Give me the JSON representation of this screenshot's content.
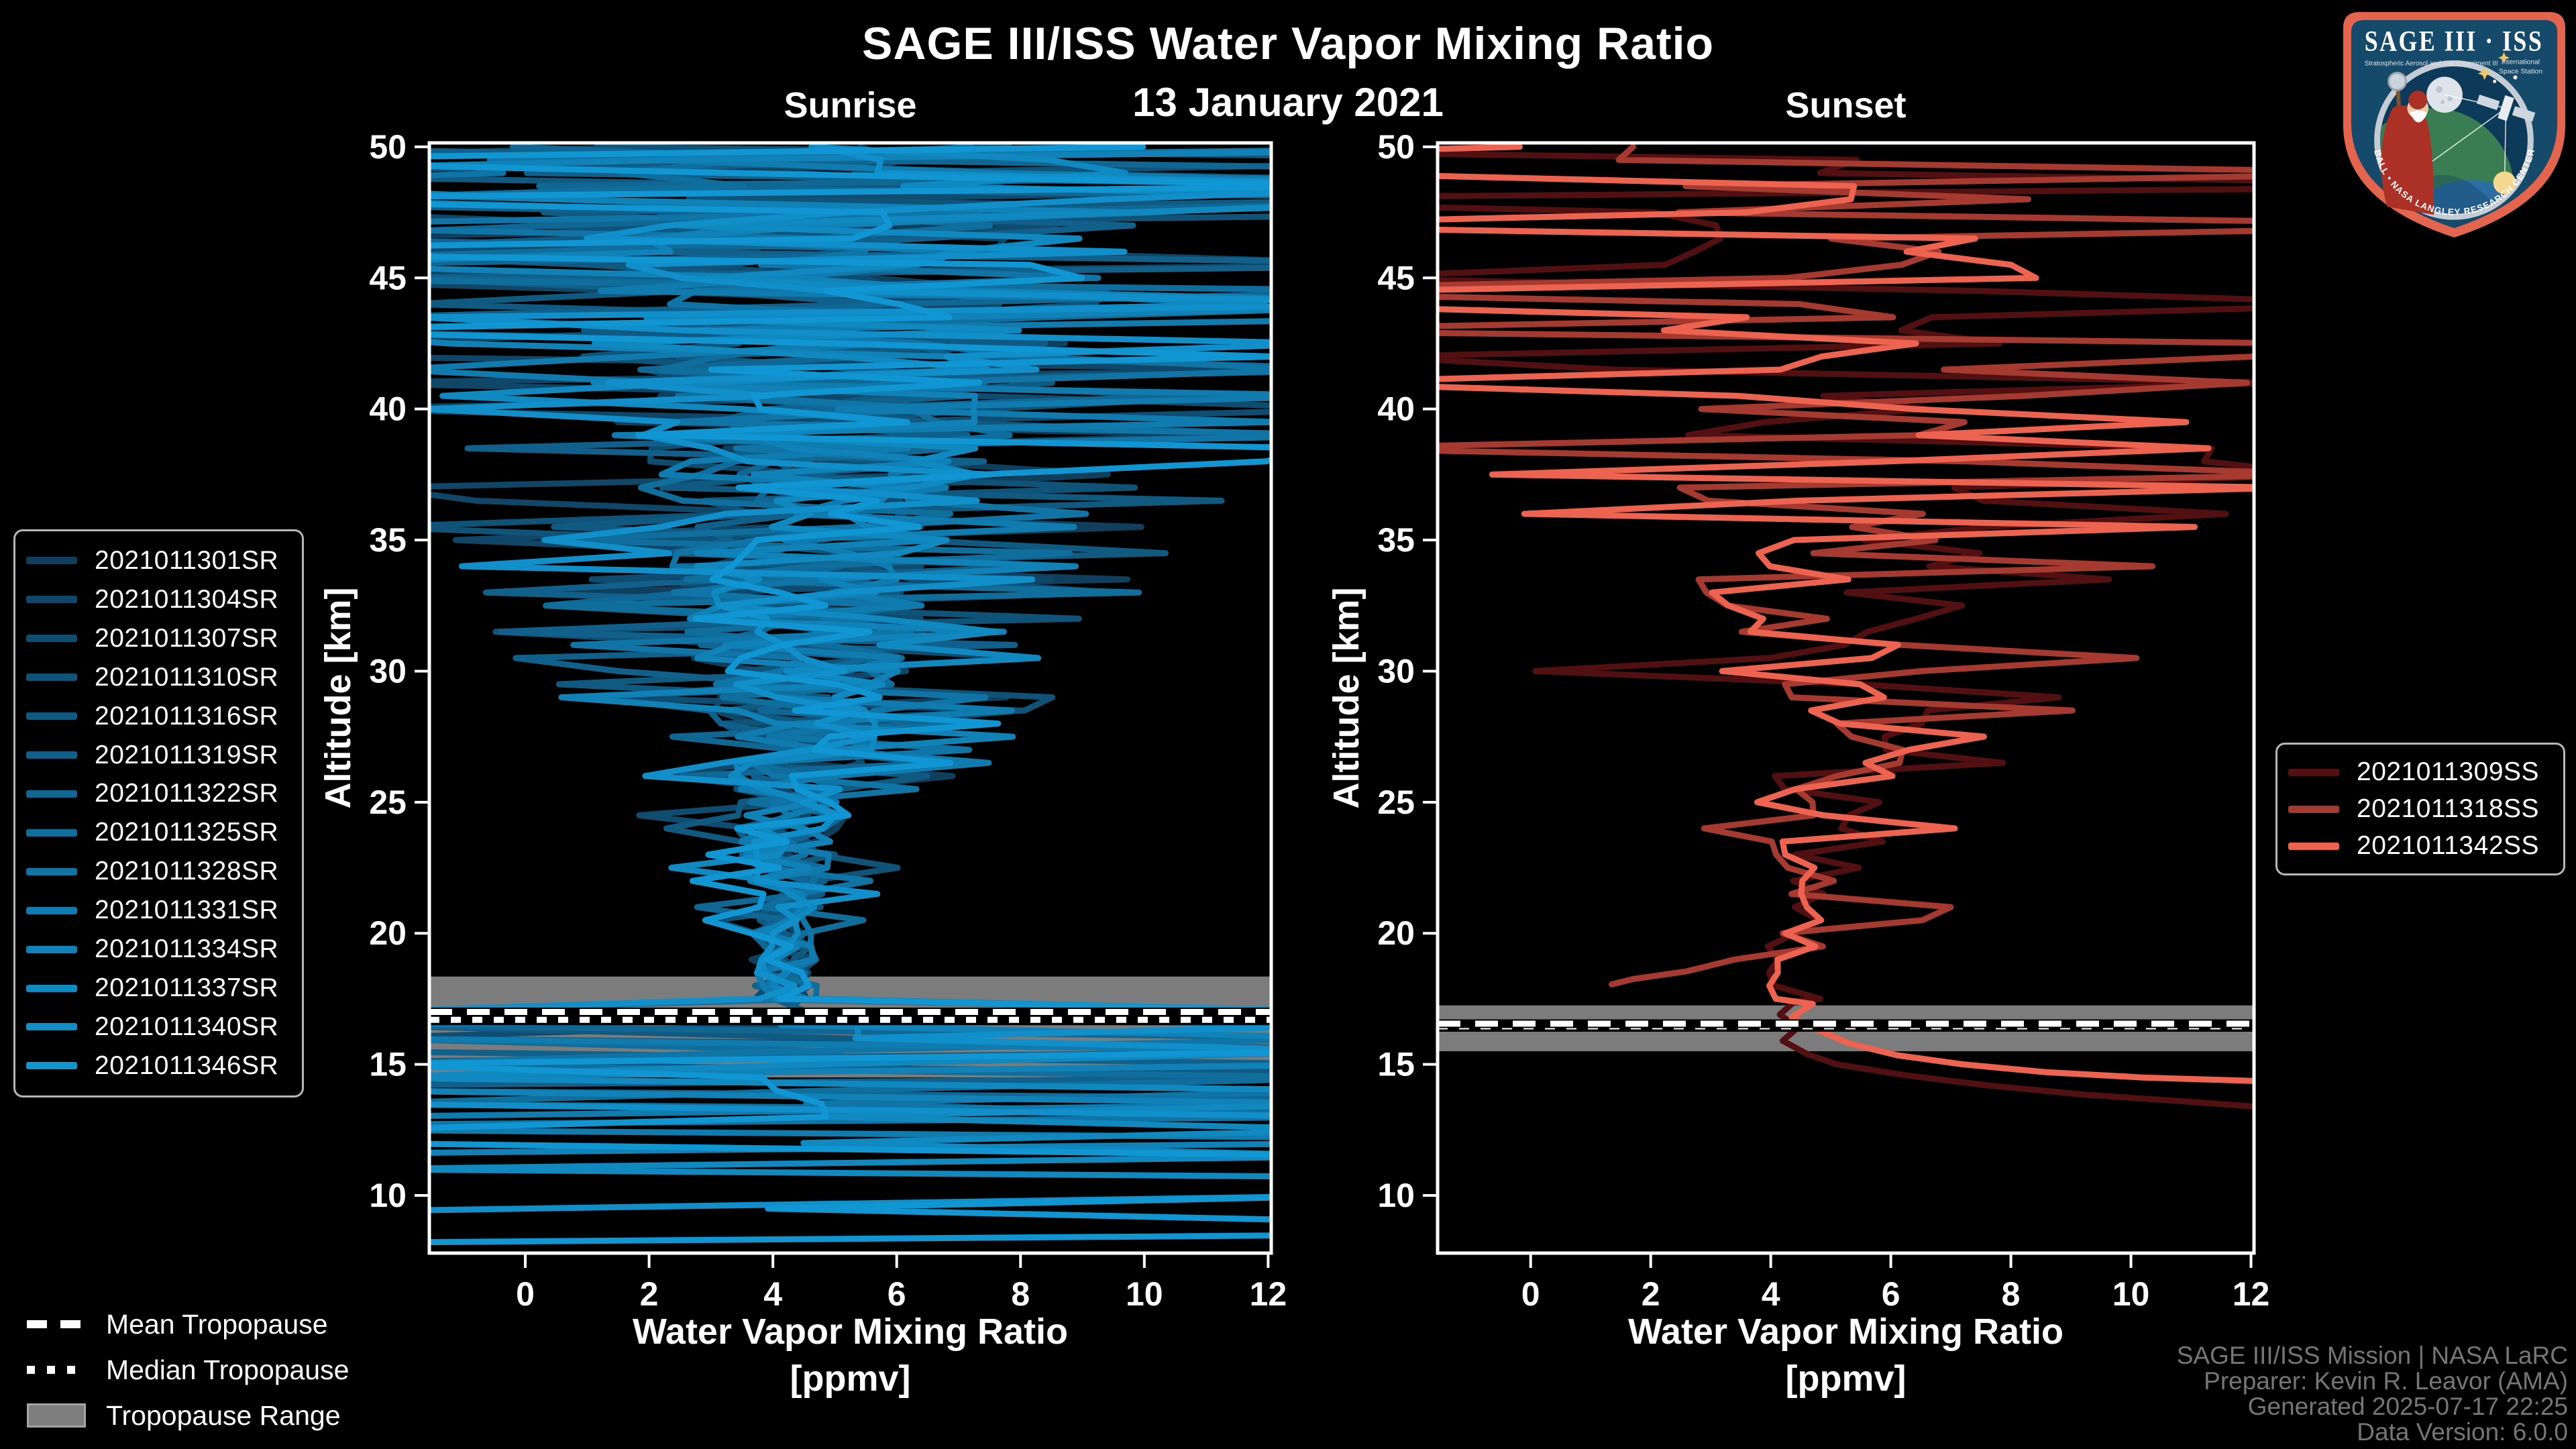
{
  "header": {
    "title": "SAGE III/ISS Water Vapor Mixing Ratio",
    "date": "13 January 2021"
  },
  "logo": {
    "title": "SAGE III · ISS",
    "sub_left": "Stratospheric Aerosol and Gas Experiment III",
    "sub_right_line1": "International",
    "sub_right_line2": "Space Station",
    "arc_text": "BALL • NASA LANGLEY RESEARCH CENTER • TAS-I • ESA"
  },
  "footer": {
    "color": "#767676",
    "lines": [
      "SAGE III/ISS Mission | NASA LaRC",
      "Preparer: Kevin R. Leavor (AMA)",
      "Generated 2025-07-17 22:25",
      "Data Version: 6.0.0"
    ]
  },
  "tropopause_legend": [
    {
      "label": "Mean Tropopause",
      "marker": "dashed-line"
    },
    {
      "label": "Median Tropopause",
      "marker": "dotted-line"
    },
    {
      "label": "Tropopause Range",
      "marker": "filled-box"
    }
  ],
  "colors": {
    "background": "#000000",
    "frame": "#ffffff",
    "tropopause_band": "#8d8d8d",
    "legend_border": "#b7b7b7",
    "footer_text": "#767676"
  },
  "chart_data": {
    "type": "line",
    "title": "SAGE III/ISS Water Vapor Mixing Ratio",
    "subtitle": "13 January 2021",
    "xlabel": "Water Vapor Mixing Ratio",
    "xlabel_units": "[ppmv]",
    "ylabel": "Altitude [km]",
    "xlim": [
      -1.55,
      12.05
    ],
    "ylim": [
      7.8,
      50.15
    ],
    "xticks": [
      0,
      2,
      4,
      6,
      8,
      10,
      12
    ],
    "yticks": [
      10,
      15,
      20,
      25,
      30,
      35,
      40,
      45,
      50
    ],
    "grid": false,
    "panels": [
      {
        "key": "sunrise",
        "label": "Sunrise",
        "legend_position": "left-outside",
        "tropopause": {
          "range_km": [
            14.5,
            18.35
          ],
          "mean_km": 17.0,
          "median_km": 16.7
        },
        "model": {
          "alt_top": 50,
          "alt_step": 0.5,
          "neck_alt": 19.5,
          "chaos_alt": 17.5,
          "center_base": 4.15,
          "center_slope": 0.03,
          "spread_base": 0.5,
          "spread_pow": 1.38,
          "spread_scale": 0.047,
          "spike_base": 0.1,
          "spike_slope": 0.006,
          "tight_center": 4.2,
          "tight_spread": 0.55,
          "edge_hi": 13.7,
          "edge_lo": -2.7
        },
        "series": [
          {
            "name": "2021011301SR",
            "color": "#103f5e",
            "seed": 11,
            "end_alt": 16.5
          },
          {
            "name": "2021011304SR",
            "color": "#104667",
            "seed": 22,
            "end_alt": 16.0
          },
          {
            "name": "2021011307SR",
            "color": "#104c70",
            "seed": 33,
            "end_alt": 15.6
          },
          {
            "name": "2021011310SR",
            "color": "#105379",
            "seed": 44,
            "end_alt": 15.1
          },
          {
            "name": "2021011316SR",
            "color": "#105a82",
            "seed": 55,
            "end_alt": 14.7
          },
          {
            "name": "2021011319SR",
            "color": "#10608b",
            "seed": 66,
            "end_alt": 14.2
          },
          {
            "name": "2021011322SR",
            "color": "#106794",
            "seed": 77,
            "end_alt": 13.7
          },
          {
            "name": "2021011325SR",
            "color": "#106e9d",
            "seed": 88,
            "end_alt": 13.2
          },
          {
            "name": "2021011328SR",
            "color": "#1075a6",
            "seed": 99,
            "end_alt": 12.7
          },
          {
            "name": "2021011331SR",
            "color": "#107baf",
            "seed": 110,
            "end_alt": 12.2
          },
          {
            "name": "2021011334SR",
            "color": "#1082b8",
            "seed": 121,
            "end_alt": 11.6
          },
          {
            "name": "2021011337SR",
            "color": "#1089c1",
            "seed": 132,
            "end_alt": 10.7
          },
          {
            "name": "2021011340SR",
            "color": "#108fca",
            "seed": 143,
            "end_alt": 9.4
          },
          {
            "name": "2021011346SR",
            "color": "#1096d3",
            "seed": 154,
            "end_alt": 8.2
          }
        ]
      },
      {
        "key": "sunset",
        "label": "Sunset",
        "legend_position": "right-outside",
        "tropopause": {
          "range_km": [
            15.5,
            17.25
          ],
          "mean_km": 16.55,
          "median_km": 16.45
        },
        "model": {
          "alt_top": 50,
          "alt_step": 0.5,
          "neck_alt": 20,
          "chaos_alt": null,
          "center_base": 4.9,
          "center_slope": 0.01,
          "spread_base": 0.75,
          "spread_pow": 1.35,
          "spread_scale": 0.05,
          "spike_base": 0.12,
          "spike_slope": 0.005,
          "tight_center": 4.45,
          "tight_spread": 0.5,
          "edge_hi": 13.7,
          "edge_lo": -2.7
        },
        "series": [
          {
            "name": "2021011309SS",
            "color": "#531012",
            "seed": 7,
            "tail": [
              [
                4.4,
                17.4
              ],
              [
                4.15,
                16.9
              ],
              [
                4.45,
                16.4
              ],
              [
                4.2,
                15.9
              ],
              [
                4.6,
                15.4
              ],
              [
                5.1,
                15.0
              ],
              [
                6.2,
                14.6
              ],
              [
                7.6,
                14.2
              ],
              [
                9.2,
                13.85
              ],
              [
                10.8,
                13.6
              ],
              [
                12.3,
                13.35
              ]
            ]
          },
          {
            "name": "2021011318SS",
            "color": "#a63a30",
            "seed": 17,
            "tail": [
              [
                3.4,
                19.0
              ],
              [
                2.6,
                18.55
              ],
              [
                1.7,
                18.25
              ],
              [
                1.35,
                18.05
              ]
            ]
          },
          {
            "name": "2021011342SS",
            "color": "#ee6350",
            "seed": 27,
            "tail": [
              [
                4.7,
                17.3
              ],
              [
                4.35,
                16.8
              ],
              [
                4.8,
                16.3
              ],
              [
                5.3,
                15.8
              ],
              [
                6.1,
                15.35
              ],
              [
                7.2,
                15.0
              ],
              [
                8.6,
                14.7
              ],
              [
                10.2,
                14.5
              ],
              [
                11.6,
                14.4
              ],
              [
                12.3,
                14.35
              ]
            ]
          }
        ]
      }
    ]
  }
}
